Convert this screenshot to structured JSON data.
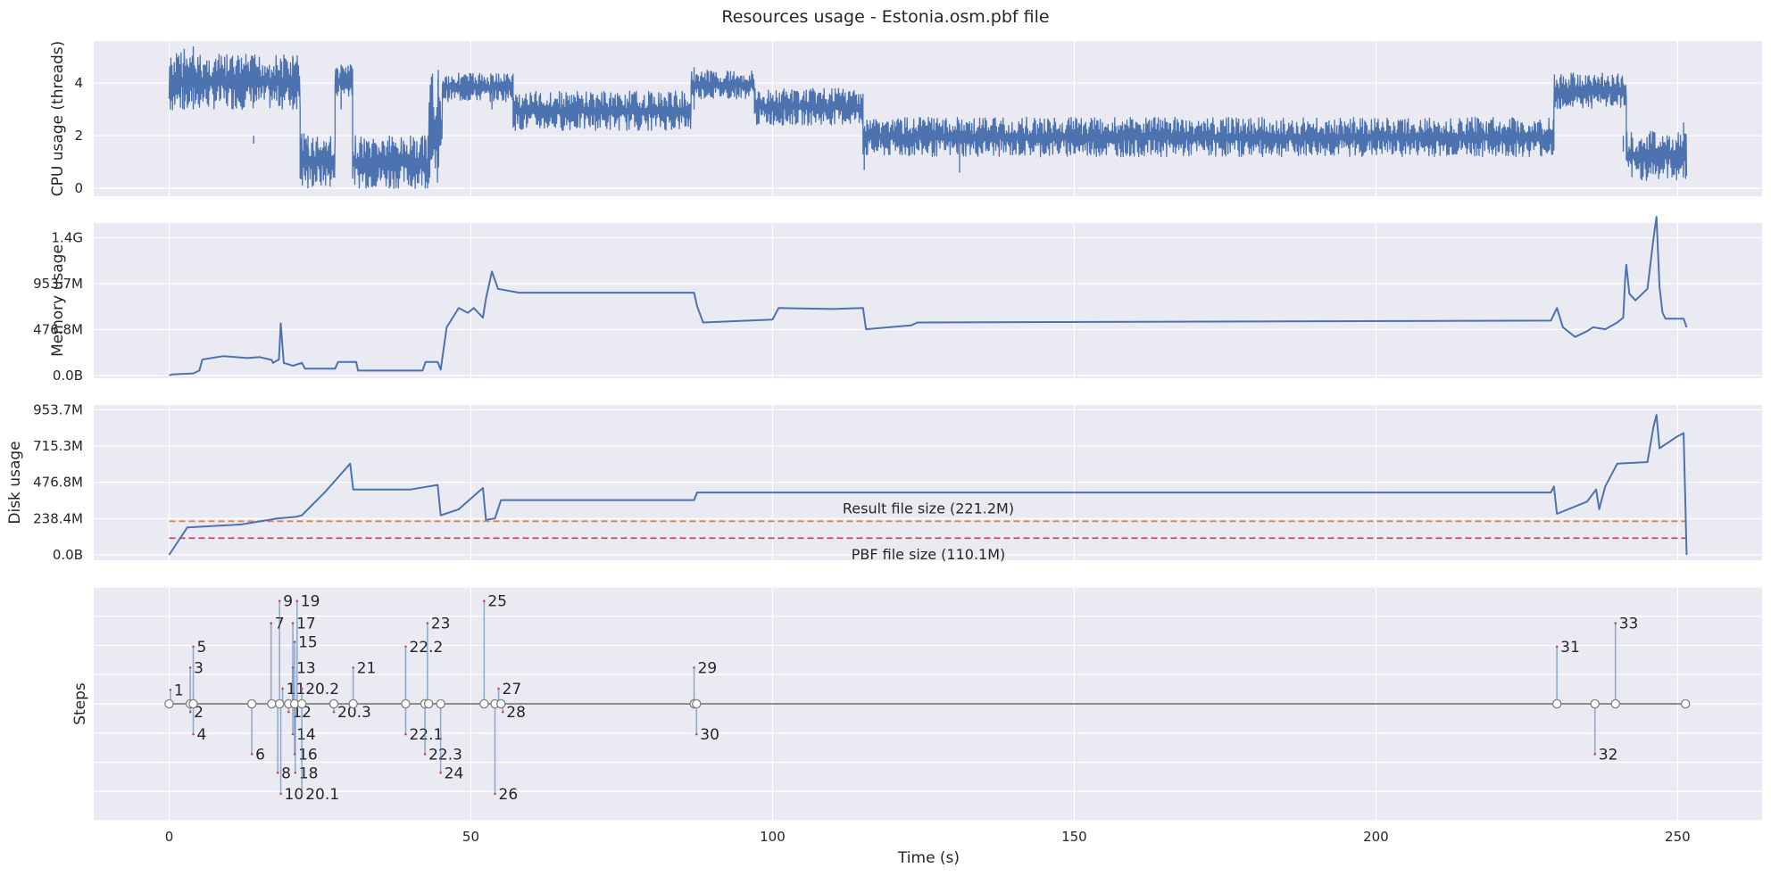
{
  "title": "Resources usage - Estonia.osm.pbf file",
  "chart_data": [
    {
      "type": "line",
      "id": "cpu",
      "ylabel": "CPU usage (threads)",
      "ylim": [
        -0.3,
        5.6
      ],
      "yticks": [
        0,
        2,
        4
      ],
      "ytick_labels": [
        "0",
        "2",
        "4"
      ],
      "xlim": [
        -12.5,
        264
      ],
      "color": "#4c72b0",
      "series": [
        {
          "segments": [
            {
              "x0": 0,
              "x1": 3,
              "lo": 2.9,
              "hi": 5.2
            },
            {
              "x0": 3,
              "x1": 21.7,
              "lo": 3.0,
              "hi": 5.1
            },
            {
              "x0": 21.7,
              "x1": 27.5,
              "lo": 0.0,
              "hi": 2.1
            },
            {
              "x0": 27.5,
              "x1": 30.4,
              "lo": 3.5,
              "hi": 4.7
            },
            {
              "x0": 30.4,
              "x1": 43,
              "lo": 0.0,
              "hi": 2.0
            },
            {
              "x0": 43,
              "x1": 45.3,
              "lo": 0.2,
              "hi": 4.4
            },
            {
              "x0": 45.3,
              "x1": 57,
              "lo": 3.3,
              "hi": 4.4
            },
            {
              "x0": 57,
              "x1": 86.5,
              "lo": 2.2,
              "hi": 3.7
            },
            {
              "x0": 86.5,
              "x1": 97,
              "lo": 3.4,
              "hi": 4.5
            },
            {
              "x0": 97,
              "x1": 115,
              "lo": 2.4,
              "hi": 3.8
            },
            {
              "x0": 115,
              "x1": 229.5,
              "lo": 1.2,
              "hi": 2.7
            },
            {
              "x0": 229.5,
              "x1": 241.5,
              "lo": 3.0,
              "hi": 4.4
            },
            {
              "x0": 241.5,
              "x1": 251.5,
              "lo": 0.3,
              "hi": 2.2
            }
          ],
          "spikes": [
            [
              2.5,
              5.3
            ],
            [
              4.0,
              5.4
            ],
            [
              14.0,
              1.7
            ],
            [
              20.5,
              5.0
            ],
            [
              23.0,
              0.0
            ],
            [
              28.5,
              4.7
            ],
            [
              36.5,
              0.0
            ],
            [
              40.0,
              0.1
            ],
            [
              44.6,
              4.5
            ],
            [
              53.5,
              4.3
            ],
            [
              87.0,
              4.6
            ],
            [
              115.2,
              0.7
            ],
            [
              131.0,
              0.6
            ],
            [
              241.0,
              1.4
            ],
            [
              251.0,
              2.5
            ]
          ]
        }
      ]
    },
    {
      "type": "line",
      "id": "memory",
      "ylabel": "Memory usage",
      "ylim": [
        -30,
        1585
      ],
      "yticks": [
        0,
        476.8,
        953.7,
        1430.5
      ],
      "ytick_labels": [
        "0.0B",
        "476.8M",
        "953.7M",
        "1.4G"
      ],
      "xlim": [
        -12.5,
        264
      ],
      "color": "#4c72b0",
      "series": [
        {
          "x": [
            0,
            0.5,
            4,
            5,
            5.5,
            9,
            13,
            15,
            17,
            17.2,
            18.2,
            18.5,
            19,
            20.5,
            22,
            22.5,
            27.5,
            28,
            31,
            31.3,
            42,
            42.5,
            44.5,
            45,
            46,
            48,
            49.5,
            50.5,
            52,
            52.5,
            53.5,
            54.5,
            58,
            87,
            87.5,
            88.5,
            100,
            101,
            110,
            115,
            115.5,
            123,
            124,
            229,
            230,
            231,
            233,
            235,
            236,
            238,
            240,
            241,
            241.3,
            241.5,
            242,
            243,
            245,
            246,
            246.5,
            247,
            247.5,
            248,
            251,
            251.5
          ],
          "y": [
            0,
            10,
            20,
            50,
            165,
            200,
            180,
            190,
            160,
            130,
            165,
            540,
            130,
            100,
            130,
            70,
            70,
            140,
            140,
            50,
            50,
            140,
            140,
            60,
            500,
            700,
            650,
            700,
            600,
            800,
            1080,
            900,
            860,
            860,
            720,
            550,
            580,
            700,
            690,
            700,
            480,
            520,
            550,
            570,
            700,
            500,
            400,
            460,
            500,
            480,
            550,
            600,
            1000,
            1150,
            850,
            780,
            900,
            1420,
            1650,
            920,
            650,
            590,
            590,
            500
          ]
        }
      ]
    },
    {
      "type": "line",
      "id": "disk",
      "ylabel": "Disk usage",
      "ylim": [
        -35,
        985
      ],
      "yticks": [
        0,
        238.4,
        476.8,
        715.3,
        953.7
      ],
      "ytick_labels": [
        "0.0B",
        "238.4M",
        "476.8M",
        "715.3M",
        "953.7M"
      ],
      "xlim": [
        -12.5,
        264
      ],
      "color": "#4c72b0",
      "hlines": [
        {
          "value": 221.2,
          "color": "#dd8452",
          "label": "Result file size (221.2M)",
          "label_pos": "above"
        },
        {
          "value": 110.1,
          "color": "#c44e52",
          "label": "PBF file size (110.1M)",
          "label_pos": "below"
        }
      ],
      "series": [
        {
          "x": [
            0,
            3,
            12,
            18,
            21,
            22,
            26,
            30,
            30.5,
            35,
            40,
            43,
            44.5,
            45,
            48,
            52,
            52.5,
            54,
            55,
            87,
            87.5,
            229,
            229.5,
            230,
            235,
            236.5,
            237,
            238,
            240,
            245,
            246,
            246.5,
            247,
            250,
            251,
            251.5
          ],
          "y": [
            0,
            180,
            200,
            240,
            250,
            260,
            420,
            600,
            430,
            430,
            430,
            450,
            460,
            260,
            300,
            440,
            230,
            240,
            360,
            360,
            410,
            410,
            450,
            270,
            350,
            430,
            300,
            450,
            600,
            610,
            840,
            920,
            700,
            780,
            800,
            0
          ]
        }
      ]
    },
    {
      "type": "scatter",
      "id": "steps",
      "ylabel": "Steps",
      "xlabel": "Time (s)",
      "ylim": [
        -10,
        10
      ],
      "xlim": [
        -12.5,
        264
      ],
      "xticks": [
        0,
        50,
        100,
        150,
        200,
        250
      ],
      "xtick_labels": [
        "0",
        "50",
        "100",
        "150",
        "200",
        "250"
      ],
      "color": "#4c72b0",
      "points": [
        {
          "label": "1",
          "x": 0.2,
          "y": 1.2
        },
        {
          "label": "2",
          "x": 3.5,
          "y": -0.7
        },
        {
          "label": "3",
          "x": 3.5,
          "y": 3.1
        },
        {
          "label": "4",
          "x": 4.0,
          "y": -2.6
        },
        {
          "label": "5",
          "x": 4.0,
          "y": 4.9
        },
        {
          "label": "6",
          "x": 13.7,
          "y": -4.3
        },
        {
          "label": "7",
          "x": 16.9,
          "y": 6.9
        },
        {
          "label": "8",
          "x": 18.0,
          "y": -5.9
        },
        {
          "label": "9",
          "x": 18.3,
          "y": 8.8
        },
        {
          "label": "10",
          "x": 18.5,
          "y": -7.7
        },
        {
          "label": "11",
          "x": 18.8,
          "y": 1.3
        },
        {
          "label": "12",
          "x": 19.8,
          "y": -0.7
        },
        {
          "label": "13",
          "x": 20.5,
          "y": 3.1
        },
        {
          "label": "14",
          "x": 20.5,
          "y": -2.6
        },
        {
          "label": "15",
          "x": 20.8,
          "y": 5.3
        },
        {
          "label": "16",
          "x": 20.8,
          "y": -4.3
        },
        {
          "label": "17",
          "x": 20.5,
          "y": 6.9
        },
        {
          "label": "18",
          "x": 20.9,
          "y": -5.9
        },
        {
          "label": "19",
          "x": 21.2,
          "y": 8.8
        },
        {
          "label": "20.1",
          "x": 22.0,
          "y": -7.7
        },
        {
          "label": "20.2",
          "x": 22.0,
          "y": 1.3
        },
        {
          "label": "20.3",
          "x": 27.3,
          "y": -0.7
        },
        {
          "label": "21",
          "x": 30.5,
          "y": 3.1
        },
        {
          "label": "22.1",
          "x": 39.2,
          "y": -2.6
        },
        {
          "label": "22.2",
          "x": 39.2,
          "y": 4.9
        },
        {
          "label": "22.3",
          "x": 42.4,
          "y": -4.3
        },
        {
          "label": "23",
          "x": 42.8,
          "y": 6.9
        },
        {
          "label": "24",
          "x": 45.0,
          "y": -5.9
        },
        {
          "label": "25",
          "x": 52.2,
          "y": 8.8
        },
        {
          "label": "26",
          "x": 54.0,
          "y": -7.7
        },
        {
          "label": "27",
          "x": 54.6,
          "y": 1.3
        },
        {
          "label": "28",
          "x": 55.3,
          "y": -0.7
        },
        {
          "label": "29",
          "x": 87.0,
          "y": 3.1
        },
        {
          "label": "30",
          "x": 87.4,
          "y": -2.6
        },
        {
          "label": "31",
          "x": 230.0,
          "y": 4.9
        },
        {
          "label": "32",
          "x": 236.3,
          "y": -4.3
        },
        {
          "label": "33",
          "x": 239.7,
          "y": 6.9
        }
      ],
      "baseline_markers": [
        0,
        3.5,
        4.0,
        13.7,
        17.0,
        18.3,
        19.8,
        20.8,
        22.0,
        27.3,
        30.5,
        39.2,
        42.4,
        43.0,
        45.0,
        52.2,
        54.0,
        55.0,
        87.0,
        87.4,
        230.0,
        236.3,
        239.7,
        251.3
      ]
    }
  ]
}
